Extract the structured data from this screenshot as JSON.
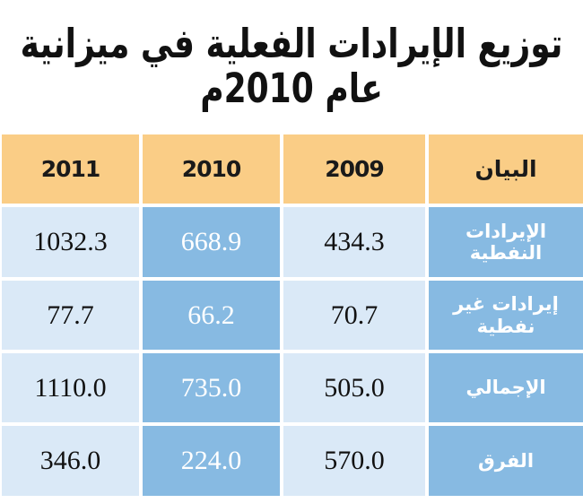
{
  "page": {
    "title": "توزيع الإيرادات الفعلية في ميزانية عام 2010م"
  },
  "table": {
    "headers": {
      "y2011": "2011",
      "y2010": "2010",
      "y2009": "2009",
      "label": "البيان"
    },
    "rows": [
      {
        "label": "الإيرادات النفطية",
        "y2011": "1032.3",
        "y2010": "668.9",
        "y2009": "434.3"
      },
      {
        "label": "إيرادات غير نفطية",
        "y2011": "77.7",
        "y2010": "66.2",
        "y2009": "70.7"
      },
      {
        "label": "الإجمالي",
        "y2011": "1110.0",
        "y2010": "735.0",
        "y2009": "505.0"
      },
      {
        "label": "الفرق",
        "y2011": "346.0",
        "y2010": "224.0",
        "y2009": "570.0"
      }
    ]
  },
  "colors": {
    "header_bg": "#FACD86",
    "cell_light_blue": "#DAE9F7",
    "cell_medium_blue": "#87BAE2",
    "text_dark": "#111111",
    "text_light": "#FFFFFF"
  },
  "chart_data": {
    "type": "table",
    "title": "توزيع الإيرادات الفعلية في ميزانية عام 2010م",
    "categories": [
      "الإيرادات النفطية",
      "إيرادات غير نفطية",
      "الإجمالي",
      "الفرق"
    ],
    "series": [
      {
        "name": "2011",
        "values": [
          1032.3,
          77.7,
          1110.0,
          346.0
        ]
      },
      {
        "name": "2010",
        "values": [
          668.9,
          66.2,
          735.0,
          224.0
        ]
      },
      {
        "name": "2009",
        "values": [
          434.3,
          70.7,
          505.0,
          570.0
        ]
      }
    ],
    "layout_hints": {
      "column_order_left_to_right": [
        "2011",
        "2010",
        "2009",
        "البيان"
      ],
      "highlighted_column": "2010",
      "direction": "rtl"
    }
  }
}
